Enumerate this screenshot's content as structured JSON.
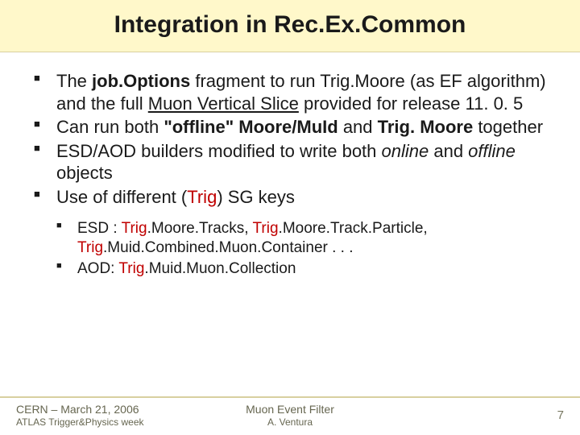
{
  "title": "Integration in Rec.Ex.Common",
  "bullets": {
    "b1a": "The ",
    "b1b": "job.Options",
    "b1c": " fragment to run Trig.Moore (as EF algorithm) and the full ",
    "b1d": "Muon Vertical Slice",
    "b1e": " provided for release 11. 0. 5",
    "b2a": "Can run both ",
    "b2b": "\"offline\" Moore/MuId",
    "b2c": " and ",
    "b2d": "Trig. Moore",
    "b2e": " together",
    "b3a": "ESD/AOD builders modified to write both ",
    "b3b": "online",
    "b3c": " and ",
    "b3d": "offline",
    "b3e": " objects",
    "b4a": "Use of different (",
    "b4b": "Trig",
    "b4c": ") SG keys"
  },
  "sub": {
    "s1a": "ESD : ",
    "s1b": "Trig",
    "s1c": ".Moore.Tracks, ",
    "s1d": "Trig",
    "s1e": ".Moore.Track.Particle, ",
    "s1f": "Trig",
    "s1g": ".Muid.Combined.Muon.Container . . .",
    "s2a": "AOD: ",
    "s2b": "Trig",
    "s2c": ".Muid.Muon.Collection"
  },
  "footer": {
    "left1": "CERN – March 21, 2006",
    "left2": "ATLAS Trigger&Physics week",
    "center1": "Muon Event Filter",
    "center2": "A. Ventura",
    "page": "7"
  },
  "colors": {
    "title_band": "#fff8ca",
    "accent_red": "#c00000",
    "footer_rule": "#d8d0a0"
  }
}
